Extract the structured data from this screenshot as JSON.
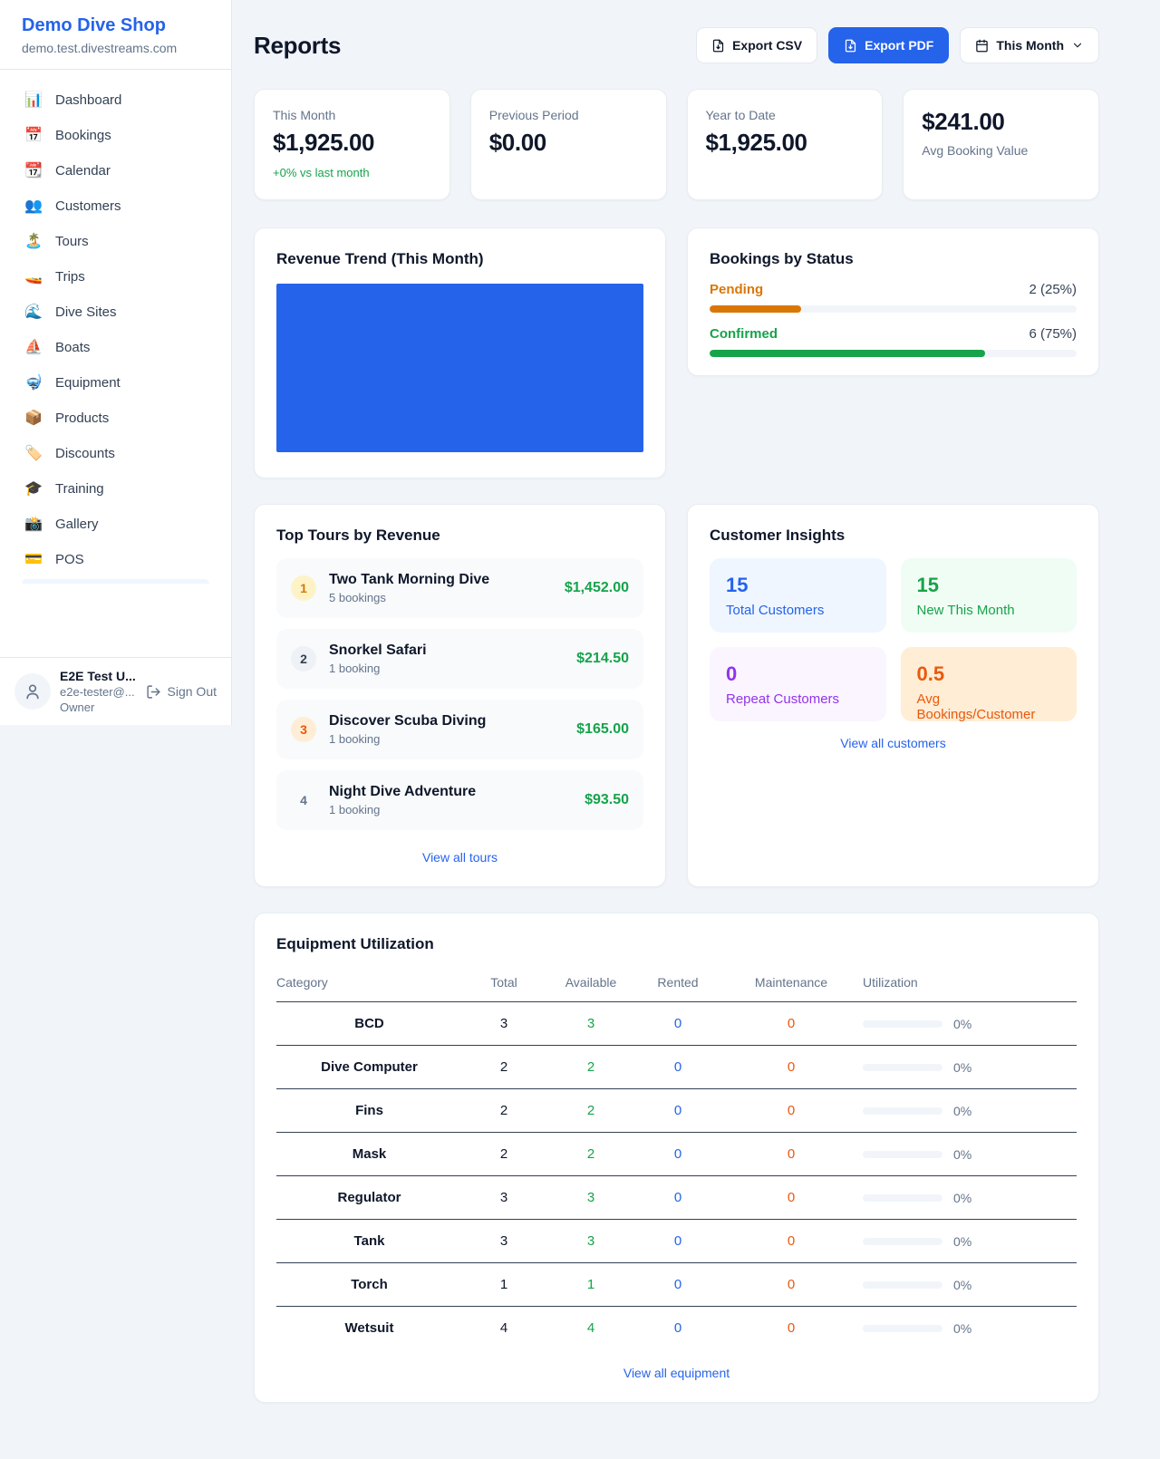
{
  "colors": {
    "accent_blue": "#2563eb",
    "success_green": "#16a34a",
    "pending_amber": "#d97706",
    "warning_orange": "#ea580c",
    "repeat_purple": "#9333ea",
    "page_background": "#f1f5f9"
  },
  "sidebar": {
    "brand_name": "Demo Dive Shop",
    "brand_domain": "demo.test.divestreams.com",
    "nav": [
      {
        "icon": "📊",
        "label": "Dashboard"
      },
      {
        "icon": "📅",
        "label": "Bookings"
      },
      {
        "icon": "📆",
        "label": "Calendar"
      },
      {
        "icon": "👥",
        "label": "Customers"
      },
      {
        "icon": "🏝️",
        "label": "Tours"
      },
      {
        "icon": "🚤",
        "label": "Trips"
      },
      {
        "icon": "🌊",
        "label": "Dive Sites"
      },
      {
        "icon": "⛵",
        "label": "Boats"
      },
      {
        "icon": "🤿",
        "label": "Equipment"
      },
      {
        "icon": "📦",
        "label": "Products"
      },
      {
        "icon": "🏷️",
        "label": "Discounts"
      },
      {
        "icon": "🎓",
        "label": "Training"
      },
      {
        "icon": "📸",
        "label": "Gallery"
      },
      {
        "icon": "💳",
        "label": "POS"
      }
    ],
    "user": {
      "name": "E2E Test U...",
      "email": "e2e-tester@...",
      "role": "Owner",
      "sign_out": "Sign Out"
    }
  },
  "header": {
    "title": "Reports",
    "export_csv": "Export CSV",
    "export_pdf": "Export PDF",
    "period": "This Month"
  },
  "stats": [
    {
      "label": "This Month",
      "value": "$1,925.00",
      "delta": "+0% vs last month"
    },
    {
      "label": "Previous Period",
      "value": "$0.00"
    },
    {
      "label": "Year to Date",
      "value": "$1,925.00"
    },
    {
      "label": "Avg Booking Value",
      "value": "$241.00"
    }
  ],
  "revenue_trend": {
    "title": "Revenue Trend (This Month)"
  },
  "bookings_by_status": {
    "title": "Bookings by Status",
    "rows": [
      {
        "label": "Pending",
        "value": "2 (25%)",
        "pct": 25
      },
      {
        "label": "Confirmed",
        "value": "6 (75%)",
        "pct": 75
      }
    ]
  },
  "top_tours": {
    "title": "Top Tours by Revenue",
    "items": [
      {
        "rank": "1",
        "name": "Two Tank Morning Dive",
        "bookings": "5 bookings",
        "revenue": "$1,452.00"
      },
      {
        "rank": "2",
        "name": "Snorkel Safari",
        "bookings": "1 booking",
        "revenue": "$214.50"
      },
      {
        "rank": "3",
        "name": "Discover Scuba Diving",
        "bookings": "1 booking",
        "revenue": "$165.00"
      },
      {
        "rank": "4",
        "name": "Night Dive Adventure",
        "bookings": "1 booking",
        "revenue": "$93.50"
      }
    ],
    "view_all": "View all tours"
  },
  "customer_insights": {
    "title": "Customer Insights",
    "tiles": [
      {
        "value": "15",
        "label": "Total Customers"
      },
      {
        "value": "15",
        "label": "New This Month"
      },
      {
        "value": "0",
        "label": "Repeat Customers"
      },
      {
        "value": "0.5",
        "label": "Avg Bookings/Customer"
      }
    ],
    "view_all": "View all customers"
  },
  "equipment": {
    "title": "Equipment Utilization",
    "columns": [
      "Category",
      "Total",
      "Available",
      "Rented",
      "Maintenance",
      "Utilization"
    ],
    "rows": [
      {
        "category": "BCD",
        "total": "3",
        "available": "3",
        "rented": "0",
        "maintenance": "0",
        "utilization": "0%",
        "pct": 0
      },
      {
        "category": "Dive Computer",
        "total": "2",
        "available": "2",
        "rented": "0",
        "maintenance": "0",
        "utilization": "0%",
        "pct": 0
      },
      {
        "category": "Fins",
        "total": "2",
        "available": "2",
        "rented": "0",
        "maintenance": "0",
        "utilization": "0%",
        "pct": 0
      },
      {
        "category": "Mask",
        "total": "2",
        "available": "2",
        "rented": "0",
        "maintenance": "0",
        "utilization": "0%",
        "pct": 0
      },
      {
        "category": "Regulator",
        "total": "3",
        "available": "3",
        "rented": "0",
        "maintenance": "0",
        "utilization": "0%",
        "pct": 0
      },
      {
        "category": "Tank",
        "total": "3",
        "available": "3",
        "rented": "0",
        "maintenance": "0",
        "utilization": "0%",
        "pct": 0
      },
      {
        "category": "Torch",
        "total": "1",
        "available": "1",
        "rented": "0",
        "maintenance": "0",
        "utilization": "0%",
        "pct": 0
      },
      {
        "category": "Wetsuit",
        "total": "4",
        "available": "4",
        "rented": "0",
        "maintenance": "0",
        "utilization": "0%",
        "pct": 0
      }
    ],
    "view_all": "View all equipment"
  },
  "chart_data": [
    {
      "type": "bar",
      "title": "Revenue Trend (This Month)",
      "note": "plot area rendered as one solid filled block spanning the full chart, no axes, ticks or labels visible",
      "fill_color": "#2563eb"
    },
    {
      "type": "bar",
      "title": "Bookings by Status",
      "categories": [
        "Pending",
        "Confirmed"
      ],
      "values": [
        2,
        6
      ],
      "percentages": [
        25,
        75
      ],
      "colors": [
        "#d97706",
        "#16a34a"
      ]
    }
  ]
}
